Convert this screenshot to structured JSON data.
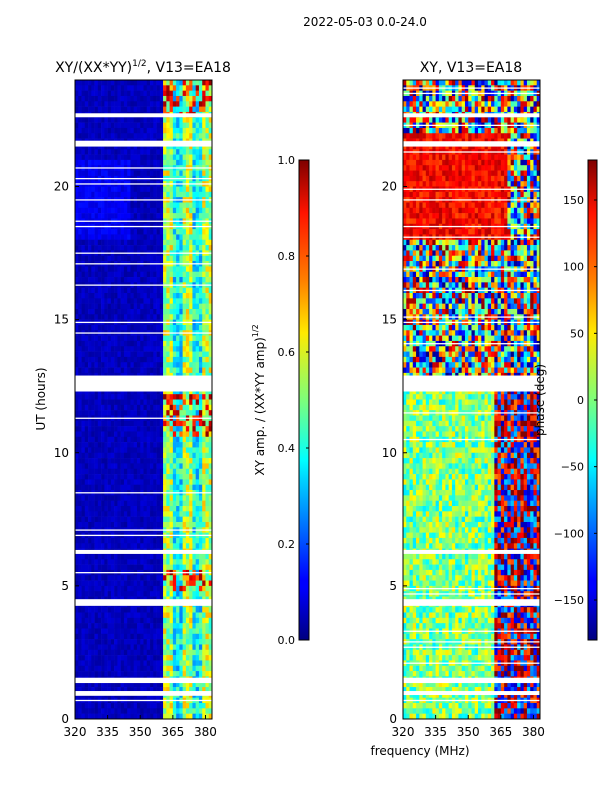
{
  "figure_title": "2022-05-03 0.0-24.0",
  "shared_xlabel": "frequency (MHz)",
  "colors": {
    "frame": "#000000",
    "gap": "#ffffff"
  },
  "chart_data": [
    {
      "type": "heatmap",
      "title_base": "XY/(XX*YY)",
      "title_exponent": "1/2",
      "title_suffix": ", V13=EA18",
      "xlabel": "",
      "ylabel": "UT (hours)",
      "xlim": [
        320,
        383
      ],
      "ylim": [
        0,
        24
      ],
      "xticks": [
        "320",
        "335",
        "350",
        "365",
        "380"
      ],
      "xtick_values": [
        320,
        335,
        350,
        365,
        380
      ],
      "yticks": [
        "0",
        "5",
        "10",
        "15",
        "20"
      ],
      "ytick_values": [
        0,
        5,
        10,
        15,
        20
      ],
      "colormap": "jet",
      "colorbar": {
        "label_base": "XY amp. / (XX*YY amp)",
        "label_exponent": "1/2",
        "range": [
          0.0,
          1.0
        ],
        "ticks": [
          "0.0",
          "0.2",
          "0.4",
          "0.6",
          "0.8",
          "1.0"
        ],
        "tick_values": [
          0.0,
          0.2,
          0.4,
          0.6,
          0.8,
          1.0
        ]
      },
      "gaps_hours": [
        [
          0.9,
          1.05
        ],
        [
          1.35,
          1.55
        ],
        [
          4.25,
          4.5
        ],
        [
          6.2,
          6.35
        ],
        [
          12.3,
          12.9
        ],
        [
          21.5,
          21.7
        ],
        [
          22.6,
          22.75
        ]
      ]
    },
    {
      "type": "heatmap",
      "title": "XY, V13=EA18",
      "xlabel": "",
      "ylabel": "",
      "xlim": [
        320,
        383
      ],
      "ylim": [
        0,
        24
      ],
      "xticks": [
        "320",
        "335",
        "350",
        "365",
        "380"
      ],
      "xtick_values": [
        320,
        335,
        350,
        365,
        380
      ],
      "yticks": [
        "0",
        "5",
        "10",
        "15",
        "20"
      ],
      "ytick_values": [
        0,
        5,
        10,
        15,
        20
      ],
      "colormap": "jet",
      "colorbar": {
        "label": "phase (deg)",
        "range": [
          -180,
          180
        ],
        "ticks": [
          "−150",
          "−100",
          "−50",
          "0",
          "50",
          "100",
          "150"
        ],
        "tick_values": [
          -150,
          -100,
          -50,
          0,
          50,
          100,
          150
        ]
      },
      "gaps_hours": [
        [
          0.9,
          1.05
        ],
        [
          1.35,
          1.55
        ],
        [
          4.25,
          4.5
        ],
        [
          6.2,
          6.35
        ],
        [
          12.3,
          12.9
        ],
        [
          21.5,
          21.7
        ],
        [
          22.6,
          22.75
        ]
      ]
    }
  ]
}
